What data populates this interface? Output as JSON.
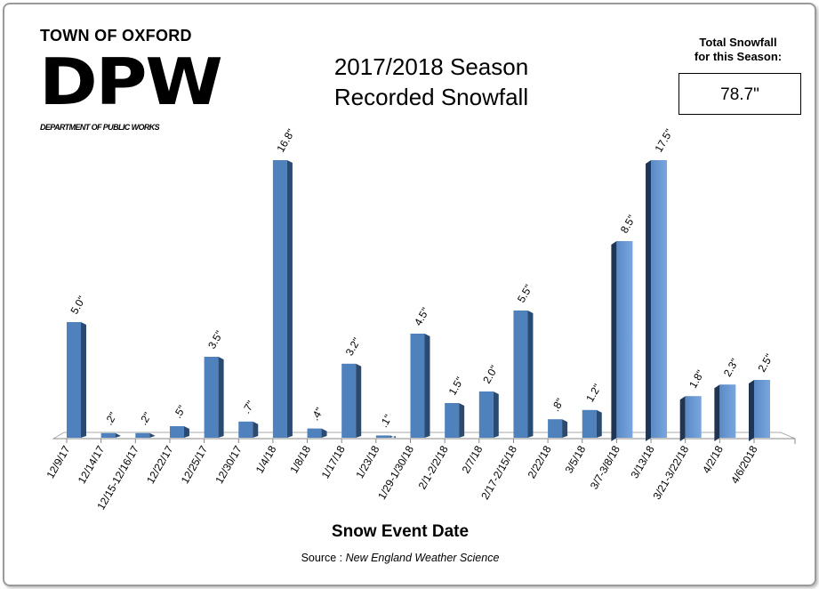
{
  "header": {
    "logo_town": "TOWN OF OXFORD",
    "logo_main": "DPW",
    "logo_sub": "DEPARTMENT OF PUBLIC WORKS",
    "title_line1": "2017/2018 Season",
    "title_line2": "Recorded Snowfall",
    "total_label_line1": "Total Snowfall",
    "total_label_line2": "for this Season:",
    "total_value": "78.7\""
  },
  "chart_data": {
    "type": "bar",
    "title": "2017/2018 Season Recorded Snowfall",
    "xlabel": "Snow Event Date",
    "ylabel": "",
    "unit": "inches",
    "grid": false,
    "categories": [
      "12/9/17",
      "12/14/17",
      "12/15-12/16/17",
      "12/22/17",
      "12/25/17",
      "12/30/17",
      "1/4/18",
      "1/8/18",
      "1/17/18",
      "1/23/18",
      "1/29-1/30/18",
      "2/1-2/2/18",
      "2/7/18",
      "2/17-2/15/18",
      "2/22/18",
      "3/5/18",
      "3/7-3/8/18",
      "3/13/18",
      "3/21-3/22/18",
      "4/2/18",
      "4/6/2018"
    ],
    "values": [
      5.0,
      0.2,
      0.2,
      0.5,
      3.5,
      0.7,
      16.8,
      0.4,
      3.2,
      0.1,
      4.5,
      1.5,
      2.0,
      5.5,
      0.8,
      1.2,
      8.5,
      17.5,
      1.8,
      2.3,
      2.5
    ],
    "data_labels": [
      "5.0\"",
      ".2\"",
      ".2\"",
      ".5\"",
      "3.5\"",
      ".7\"",
      "16.8\"",
      ".4\"",
      "3.2\"",
      ".1\"",
      "4.5\"",
      "1.5\"",
      "2.0\"",
      "5.5\"",
      ".8\"",
      "1.2\"",
      "8.5\"",
      "17.5\"",
      "1.8\"",
      "2.3\"",
      "2.5\""
    ],
    "bar_color": "#4f81bd",
    "bar_side_color": "#2b4a72"
  },
  "footer": {
    "source_label": "Source : ",
    "source_name": "New England Weather Science"
  }
}
